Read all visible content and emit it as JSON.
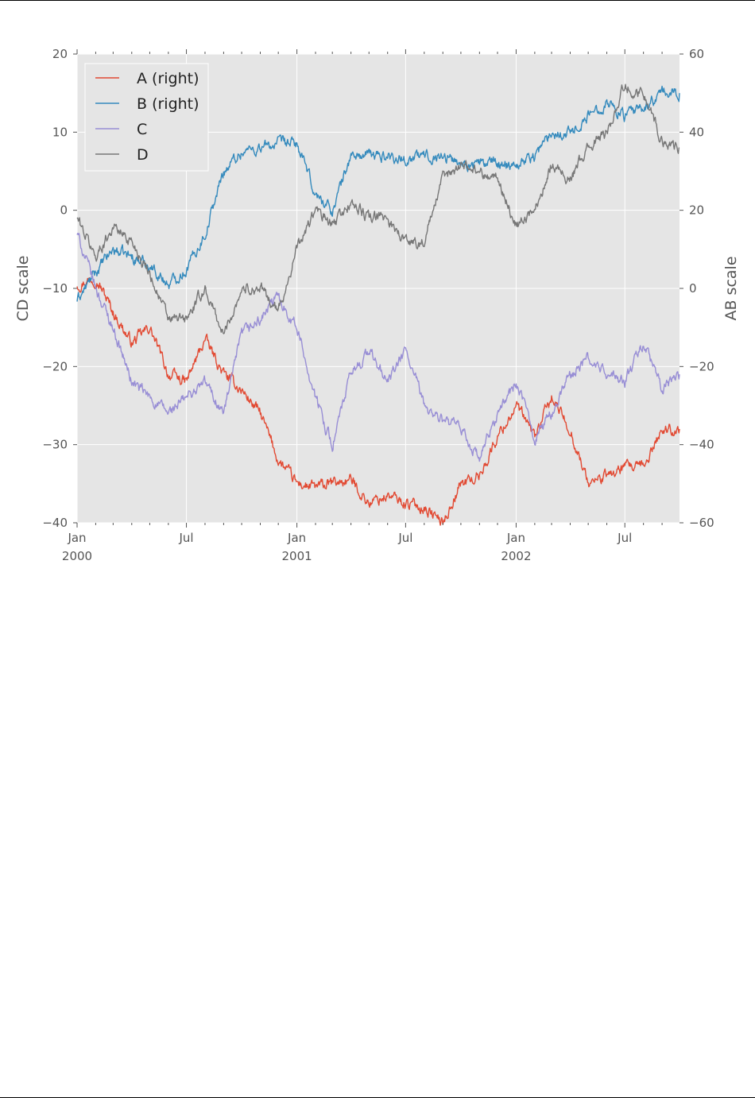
{
  "chart_data": {
    "type": "line",
    "title": "",
    "xlabel": "",
    "xlim": [
      "2000-01-01",
      "2002-09-30"
    ],
    "x_tick_labels": [
      {
        "date": "2000-01-01",
        "lines": [
          "Jan",
          "2000"
        ]
      },
      {
        "date": "2000-07-01",
        "lines": [
          "Jul"
        ]
      },
      {
        "date": "2001-01-01",
        "lines": [
          "Jan",
          "2001"
        ]
      },
      {
        "date": "2001-07-01",
        "lines": [
          "Jul"
        ]
      },
      {
        "date": "2002-01-01",
        "lines": [
          "Jan",
          "2002"
        ]
      },
      {
        "date": "2002-07-01",
        "lines": [
          "Jul"
        ]
      }
    ],
    "left_axis": {
      "label": "CD scale",
      "ylim": [
        -40,
        20
      ],
      "ticks": [
        20,
        10,
        0,
        -10,
        -20,
        -30,
        -40
      ],
      "tick_labels": [
        "20",
        "10",
        "0",
        "−10",
        "−20",
        "−30",
        "−40"
      ]
    },
    "right_axis": {
      "label": "AB scale",
      "ylim": [
        -60,
        60
      ],
      "ticks": [
        60,
        40,
        20,
        0,
        -20,
        -40,
        -60
      ],
      "tick_labels": [
        "60",
        "40",
        "20",
        "0",
        "−20",
        "−40",
        "−60"
      ]
    },
    "legend": {
      "position": "upper-left",
      "entries": [
        "A (right)",
        "B (right)",
        "C",
        "D"
      ]
    },
    "series": [
      {
        "name": "A (right)",
        "axis": "right",
        "color": "#E24A33",
        "x": [
          "2000-01-01",
          "2000-02-01",
          "2000-03-01",
          "2000-04-01",
          "2000-05-01",
          "2000-06-01",
          "2000-07-01",
          "2000-08-01",
          "2000-09-01",
          "2000-10-01",
          "2000-11-01",
          "2000-12-01",
          "2001-01-01",
          "2001-02-01",
          "2001-03-01",
          "2001-04-01",
          "2001-05-01",
          "2001-06-01",
          "2001-07-01",
          "2001-08-01",
          "2001-09-01",
          "2001-10-01",
          "2001-11-01",
          "2001-12-01",
          "2002-01-01",
          "2002-02-01",
          "2002-03-01",
          "2002-04-01",
          "2002-05-01",
          "2002-06-01",
          "2002-07-01",
          "2002-08-01",
          "2002-09-01",
          "2002-09-30"
        ],
        "values": [
          1,
          3,
          -6,
          -14,
          -10,
          -22,
          -24,
          -13,
          -22,
          -26,
          -32,
          -44,
          -50,
          -51,
          -50,
          -49,
          -55,
          -53,
          -55,
          -56,
          -60,
          -50,
          -48,
          -38,
          -30,
          -38,
          -28,
          -36,
          -50,
          -48,
          -46,
          -46,
          -36,
          -36
        ]
      },
      {
        "name": "B (right)",
        "axis": "right",
        "color": "#348ABD",
        "x": [
          "2000-01-01",
          "2000-02-01",
          "2000-03-01",
          "2000-04-01",
          "2000-05-01",
          "2000-06-01",
          "2000-07-01",
          "2000-08-01",
          "2000-09-01",
          "2000-10-01",
          "2000-11-01",
          "2000-12-01",
          "2001-01-01",
          "2001-02-01",
          "2001-03-01",
          "2001-04-01",
          "2001-05-01",
          "2001-06-01",
          "2001-07-01",
          "2001-08-01",
          "2001-09-01",
          "2001-10-01",
          "2001-11-01",
          "2001-12-01",
          "2002-01-01",
          "2002-02-01",
          "2002-03-01",
          "2002-04-01",
          "2002-05-01",
          "2002-06-01",
          "2002-07-01",
          "2002-08-01",
          "2002-09-01",
          "2002-09-30"
        ],
        "values": [
          -3,
          4,
          10,
          8,
          6,
          1,
          5,
          14,
          30,
          35,
          36,
          37,
          37,
          24,
          20,
          34,
          34,
          34,
          33,
          34,
          34,
          32,
          32,
          32,
          32,
          34,
          40,
          40,
          44,
          48,
          44,
          46,
          50,
          50
        ]
      },
      {
        "name": "C",
        "axis": "left",
        "color": "#988ED5",
        "x": [
          "2000-01-01",
          "2000-02-01",
          "2000-03-01",
          "2000-04-01",
          "2000-05-01",
          "2000-06-01",
          "2000-07-01",
          "2000-08-01",
          "2000-09-01",
          "2000-10-01",
          "2000-11-01",
          "2000-12-01",
          "2001-01-01",
          "2001-02-01",
          "2001-03-01",
          "2001-04-01",
          "2001-05-01",
          "2001-06-01",
          "2001-07-01",
          "2001-08-01",
          "2001-09-01",
          "2001-10-01",
          "2001-11-01",
          "2001-12-01",
          "2002-01-01",
          "2002-02-01",
          "2002-03-01",
          "2002-04-01",
          "2002-05-01",
          "2002-06-01",
          "2002-07-01",
          "2002-08-01",
          "2002-09-01",
          "2002-09-30"
        ],
        "values": [
          -3,
          -10,
          -15,
          -22,
          -24,
          -26,
          -24,
          -22,
          -26,
          -16,
          -14,
          -11,
          -15,
          -24,
          -30,
          -21,
          -18,
          -22,
          -18,
          -25,
          -27,
          -28,
          -32,
          -26,
          -22,
          -29,
          -26,
          -21,
          -19,
          -21,
          -22,
          -17,
          -23,
          -21
        ]
      },
      {
        "name": "D",
        "axis": "left",
        "color": "#777777",
        "x": [
          "2000-01-01",
          "2000-02-01",
          "2000-03-01",
          "2000-04-01",
          "2000-05-01",
          "2000-06-01",
          "2000-07-01",
          "2000-08-01",
          "2000-09-01",
          "2000-10-01",
          "2000-11-01",
          "2000-12-01",
          "2001-01-01",
          "2001-02-01",
          "2001-03-01",
          "2001-04-01",
          "2001-05-01",
          "2001-06-01",
          "2001-07-01",
          "2001-08-01",
          "2001-09-01",
          "2001-10-01",
          "2001-11-01",
          "2001-12-01",
          "2002-01-01",
          "2002-02-01",
          "2002-03-01",
          "2002-04-01",
          "2002-05-01",
          "2002-06-01",
          "2002-07-01",
          "2002-08-01",
          "2002-09-01",
          "2002-09-30"
        ],
        "values": [
          -1,
          -6,
          -2,
          -4,
          -8,
          -14,
          -14,
          -10,
          -16,
          -10,
          -10,
          -13,
          -5,
          0,
          -2,
          1,
          -1,
          -1,
          -4,
          -4,
          4,
          6,
          5,
          4,
          -2,
          0,
          6,
          4,
          8,
          10,
          16,
          15,
          9,
          8
        ]
      }
    ]
  }
}
